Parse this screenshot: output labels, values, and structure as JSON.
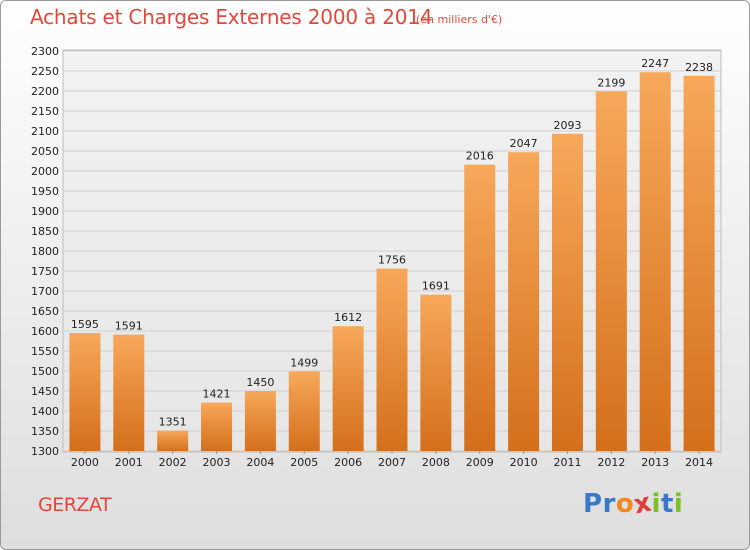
{
  "title": "Achats et Charges Externes 2000 à 2014",
  "subtitle": "(en milliers d'€)",
  "location": "GERZAT",
  "logo": {
    "letters": [
      "P",
      "r",
      "o",
      "x",
      "i",
      "t",
      "i"
    ],
    "colors": [
      "#3a78c9",
      "#3a78c9",
      "#f08a1d",
      "#e23a3a",
      "#7bbf2a",
      "#3a78c9",
      "#7bbf2a"
    ]
  },
  "colors": {
    "bar_top": "#f7a85a",
    "bar_bottom": "#d46f1b",
    "grid": "#d0d0d0",
    "axis_text": "#222222",
    "accent": "#e2483a"
  },
  "chart_data": {
    "type": "bar",
    "categories": [
      "2000",
      "2001",
      "2002",
      "2003",
      "2004",
      "2005",
      "2006",
      "2007",
      "2008",
      "2009",
      "2010",
      "2011",
      "2012",
      "2013",
      "2014"
    ],
    "values": [
      1595,
      1591,
      1351,
      1421,
      1450,
      1499,
      1612,
      1756,
      1691,
      2016,
      2047,
      2093,
      2199,
      2247,
      2238
    ],
    "ylim": [
      1300,
      2300
    ],
    "ytick_step": 50,
    "grid": true,
    "xlabel": "",
    "ylabel": ""
  }
}
